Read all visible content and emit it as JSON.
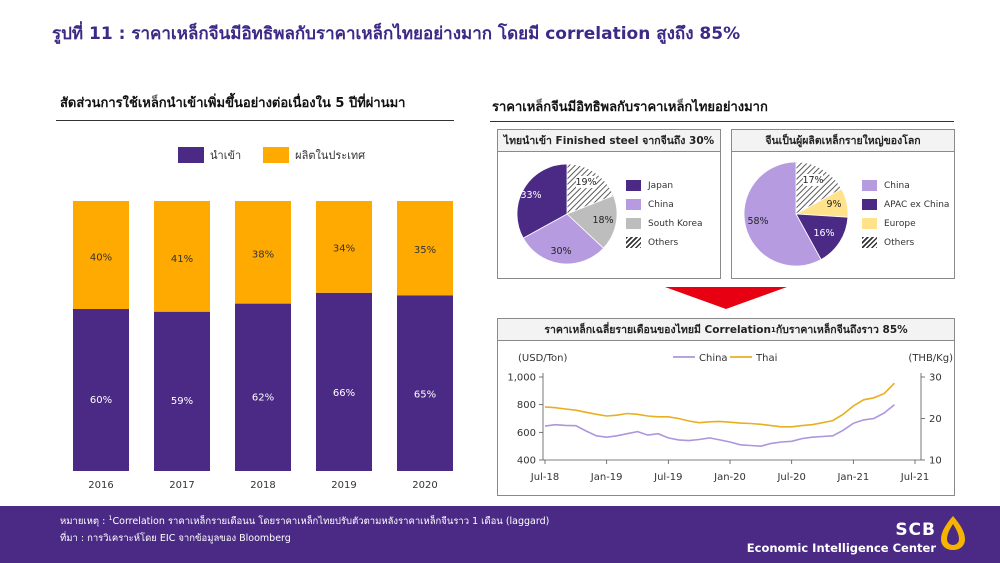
{
  "title": "รูปที่ 11 : ราคาเหล็กจีนมีอิทธิพลกับราคาเหล็กไทยอย่างมาก โดยมี correlation สูงถึง 85%",
  "left_title": "สัดส่วนการใช้เหล็กนำเข้าเพิ่มขึ้นอย่างต่อเนื่องใน 5 ปีที่ผ่านมา",
  "right_title": "ราคาเหล็กจีนมีอิทธิพลกับราคาเหล็กไทยอย่างมาก",
  "colors": {
    "purple": "#4b2a85",
    "orange": "#ffaa00",
    "lavender": "#b69be0",
    "gray": "#bdbdbd",
    "yellow": "#ffe28a",
    "china_line": "#ad96dc",
    "thai_line": "#e8b020"
  },
  "chart_data": [
    {
      "type": "bar",
      "stacked": true,
      "categories": [
        "2016",
        "2017",
        "2018",
        "2019",
        "2020"
      ],
      "series": [
        {
          "name": "นำเข้า",
          "color": "#4b2a85",
          "values": [
            60,
            59,
            62,
            66,
            65
          ],
          "labels": [
            "60%",
            "59%",
            "62%",
            "66%",
            "65%"
          ]
        },
        {
          "name": "ผลิตในประเทศ",
          "color": "#ffaa00",
          "values": [
            40,
            41,
            38,
            34,
            35
          ],
          "labels": [
            "40%",
            "41%",
            "38%",
            "34%",
            "35%"
          ]
        }
      ],
      "ylim": [
        0,
        100
      ],
      "legend": "top"
    },
    {
      "type": "pie",
      "title": "ไทยนำเข้า Finished steel จากจีนถึง 30%",
      "slices": [
        {
          "name": "Japan",
          "value": 33,
          "label": "33%",
          "color": "#4b2a85"
        },
        {
          "name": "China",
          "value": 30,
          "label": "30%",
          "color": "#b69be0"
        },
        {
          "name": "South Korea",
          "value": 18,
          "label": "18%",
          "color": "#bdbdbd"
        },
        {
          "name": "Others",
          "value": 19,
          "label": "19%",
          "color": "hatch"
        }
      ],
      "legend": "right"
    },
    {
      "type": "pie",
      "title": "จีนเป็นผู้ผลิตเหล็กรายใหญ่ของโลก",
      "slices": [
        {
          "name": "China",
          "value": 58,
          "label": "58%",
          "color": "#b69be0"
        },
        {
          "name": "APAC ex China",
          "value": 16,
          "label": "16%",
          "color": "#4b2a85"
        },
        {
          "name": "Europe",
          "value": 9,
          "label": "9%",
          "color": "#ffe28a"
        },
        {
          "name": "Others",
          "value": 17,
          "label": "17%",
          "color": "hatch"
        }
      ],
      "legend": "right"
    },
    {
      "type": "line",
      "title_main": "ราคาเหล็กเฉลี่ยรายเดือนของไทยมี  Correlation",
      "title_sup": "1",
      "title_rest": " กับราคาเหล็กจีนถึงราว  85%",
      "x": [
        "Jul-18",
        "Aug-18",
        "Sep-18",
        "Oct-18",
        "Nov-18",
        "Dec-18",
        "Jan-19",
        "Feb-19",
        "Mar-19",
        "Apr-19",
        "May-19",
        "Jun-19",
        "Jul-19",
        "Aug-19",
        "Sep-19",
        "Oct-19",
        "Nov-19",
        "Dec-19",
        "Jan-20",
        "Feb-20",
        "Mar-20",
        "Apr-20",
        "May-20",
        "Jun-20",
        "Jul-20",
        "Aug-20",
        "Sep-20",
        "Oct-20",
        "Nov-20",
        "Dec-20",
        "Jan-21",
        "Feb-21",
        "Mar-21",
        "Apr-21",
        "May-21"
      ],
      "x_ticks": [
        "Jul-18",
        "Jan-19",
        "Jul-19",
        "Jan-20",
        "Jul-20",
        "Jan-21",
        "Jul-21"
      ],
      "ylabel_left": "(USD/Ton)",
      "ylabel_right": "(THB/Kg)",
      "y_left_ticks": [
        "1,000",
        "800",
        "600",
        "400"
      ],
      "y_right_ticks": [
        "30",
        "20",
        "10"
      ],
      "ylim_left": [
        400,
        1000
      ],
      "ylim_right": [
        10,
        30
      ],
      "series": [
        {
          "name": "China",
          "axis": "left",
          "color": "#ad96dc",
          "values": [
            645,
            655,
            650,
            648,
            610,
            575,
            565,
            575,
            590,
            605,
            580,
            590,
            560,
            545,
            540,
            548,
            560,
            545,
            530,
            510,
            505,
            500,
            520,
            530,
            535,
            555,
            565,
            570,
            575,
            615,
            665,
            690,
            700,
            740,
            800
          ]
        },
        {
          "name": "Thai",
          "axis": "right",
          "axis_unit": "THB/Kg",
          "color": "#e8b020",
          "values": [
            22.8,
            22.6,
            22.3,
            22.0,
            21.5,
            21.0,
            20.6,
            20.8,
            21.2,
            21.0,
            20.6,
            20.4,
            20.4,
            20.0,
            19.4,
            19.0,
            19.2,
            19.3,
            19.1,
            18.9,
            18.8,
            18.6,
            18.3,
            18.0,
            18.0,
            18.3,
            18.5,
            19.0,
            19.5,
            21.0,
            23.0,
            24.5,
            25.0,
            26.0,
            28.5
          ]
        }
      ],
      "legend": "top"
    }
  ],
  "footnote_prefix": "หมายเหตุ : ",
  "footnote_sup": "1",
  "footnote_text": "Correlation ราคาเหล็กรายเดือนน โดยราคาเหล็กไทยปรับตัวตามหลังราคาเหล็กจีนราว 1 เดือน (laggard)",
  "source": "ที่มา : การวิเคราะห์โดย EIC จากข้อมูลของ Bloomberg",
  "brand": {
    "name": "SCB",
    "subtitle": "Economic Intelligence Center",
    "logo_icon": "scb-bowl-icon"
  }
}
